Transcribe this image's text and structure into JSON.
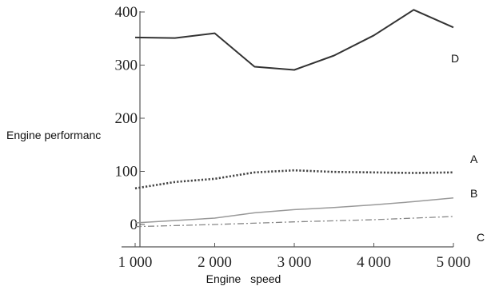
{
  "chart_data": {
    "type": "line",
    "title": "",
    "xlabel": "Engine speed",
    "ylabel": "Engine performanc",
    "xlim": [
      1000,
      5000
    ],
    "ylim": [
      0,
      400
    ],
    "xticks": [
      1000,
      2000,
      3000,
      4000,
      5000
    ],
    "xtick_labels": [
      "1 000",
      "2 000",
      "3 000",
      "4 000",
      "5 000"
    ],
    "yticks": [
      0,
      100,
      200,
      300,
      400
    ],
    "ytick_labels": [
      "0",
      "100",
      "200",
      "300",
      "400"
    ],
    "grid": false,
    "series": [
      {
        "name": "D",
        "style": "solid",
        "color": "#333333",
        "x": [
          1000,
          1500,
          2000,
          2500,
          3000,
          3500,
          4000,
          4500,
          5000
        ],
        "y": [
          352,
          351,
          360,
          297,
          291,
          318,
          356,
          404,
          371
        ]
      },
      {
        "name": "A",
        "style": "dotted",
        "color": "#444444",
        "x": [
          1000,
          1500,
          2000,
          2500,
          3000,
          3500,
          4000,
          4500,
          5000
        ],
        "y": [
          68,
          80,
          86,
          98,
          102,
          99,
          98,
          97,
          98
        ]
      },
      {
        "name": "B",
        "style": "solid",
        "color": "#999999",
        "x": [
          1000,
          2000,
          2500,
          3000,
          3500,
          4000,
          4500,
          5000
        ],
        "y": [
          3,
          12,
          22,
          28,
          32,
          37,
          43,
          50
        ]
      },
      {
        "name": "C",
        "style": "dashdot",
        "color": "#888888",
        "x": [
          1000,
          2000,
          3000,
          4000,
          5000
        ],
        "y": [
          -4,
          0,
          5,
          9,
          15
        ]
      }
    ]
  }
}
